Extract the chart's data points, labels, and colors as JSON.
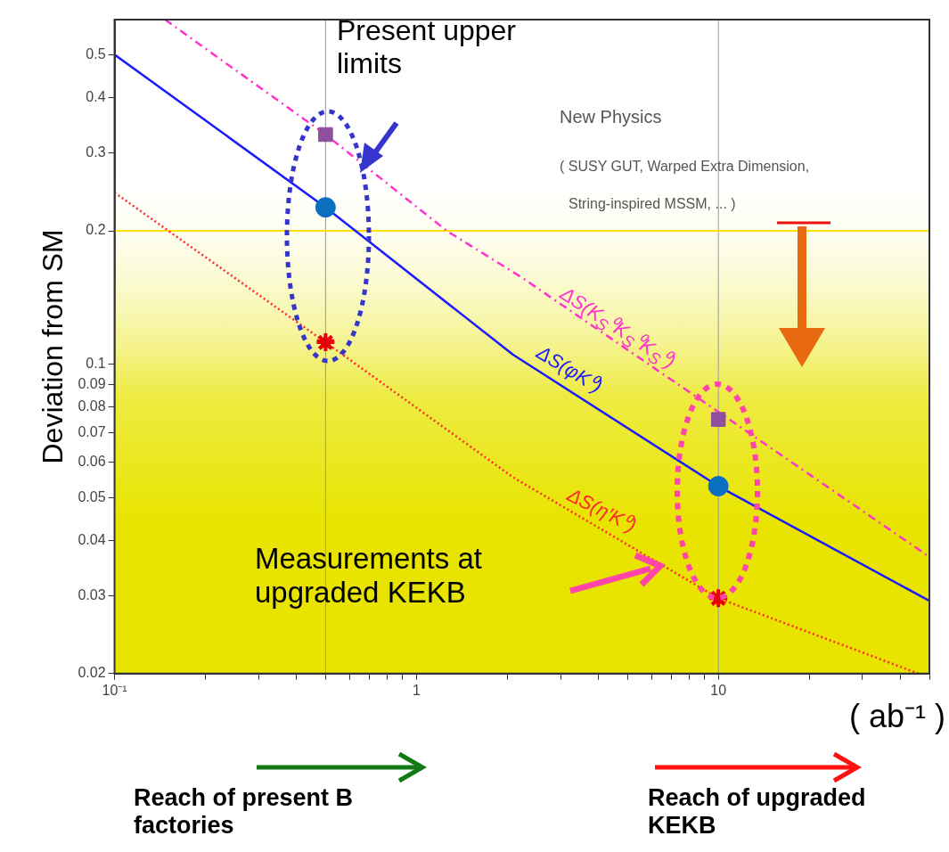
{
  "chart_data": {
    "type": "line",
    "ylabel": "Deviation from SM",
    "xlabel": "( ab⁻¹ )",
    "log": "xy",
    "grid": false,
    "legend": false,
    "xlim": [
      0.1,
      50
    ],
    "ylim": [
      0.02,
      0.6
    ],
    "xticks": [
      {
        "value": 0.1,
        "label": "10⁻¹"
      },
      {
        "value": 0.2,
        "label": null
      },
      {
        "value": 0.3,
        "label": null
      },
      {
        "value": 0.4,
        "label": null
      },
      {
        "value": 0.5,
        "label": null
      },
      {
        "value": 0.6,
        "label": null
      },
      {
        "value": 0.7,
        "label": null
      },
      {
        "value": 0.8,
        "label": null
      },
      {
        "value": 0.9,
        "label": null
      },
      1,
      {
        "value": 2,
        "label": null
      },
      {
        "value": 3,
        "label": null
      },
      {
        "value": 4,
        "label": null
      },
      {
        "value": 5,
        "label": null
      },
      {
        "value": 6,
        "label": null
      },
      {
        "value": 7,
        "label": null
      },
      {
        "value": 8,
        "label": null
      },
      {
        "value": 9,
        "label": null
      },
      10,
      {
        "value": 20,
        "label": null
      },
      {
        "value": 30,
        "label": null
      },
      {
        "value": 40,
        "label": null
      },
      {
        "value": 50,
        "label": null
      }
    ],
    "yticks": [
      0.02,
      0.03,
      0.04,
      0.05,
      0.06,
      0.07,
      0.08,
      0.09,
      0.1,
      0.2,
      0.3,
      0.4,
      0.5
    ],
    "series": [
      {
        "name": "ΔS(K$_{S}$⁰K$_{S}$⁰K$_{S}$⁰)",
        "color": "#ff33cc",
        "type": "line",
        "marker": "none",
        "line_style": "dashed",
        "x": [
          0.147,
          0.5,
          1.26,
          2.23,
          10,
          50
        ],
        "values": [
          0.6,
          0.33,
          0.2,
          0.157,
          0.078,
          0.0367
        ]
      },
      {
        "name": "ΔS(φK⁰)",
        "color": "#1a1aff",
        "type": "line",
        "marker": "none",
        "line_style": "solid",
        "x": [
          0.1,
          0.5,
          2.09,
          10,
          50
        ],
        "values": [
          0.5,
          0.226,
          0.105,
          0.053,
          0.0292
        ]
      },
      {
        "name": "ΔS(η′K⁰)",
        "color": "#ff2a2a",
        "type": "line",
        "marker": "none",
        "line_style": "dotted",
        "x": [
          0.1,
          0.5,
          2.09,
          10,
          46
        ],
        "values": [
          0.244,
          0.112,
          0.0555,
          0.0296,
          0.02
        ]
      },
      {
        "color": "#8e4f9e",
        "type": "scatter",
        "marker": "square",
        "x": [
          0.5,
          10
        ],
        "values": [
          0.33,
          0.075
        ]
      },
      {
        "color": "#0a6fbf",
        "type": "scatter",
        "marker": "circle",
        "x": [
          0.5,
          10
        ],
        "values": [
          0.226,
          0.053
        ]
      },
      {
        "color": "#e8000b",
        "type": "scatter",
        "marker": "star",
        "x": [
          0.5,
          10
        ],
        "values": [
          0.112,
          0.0296
        ]
      }
    ],
    "ref_lines": [
      {
        "axis": "x",
        "value": 0.5,
        "color": "#999999"
      },
      {
        "axis": "x",
        "value": 10,
        "color": "#999999"
      },
      {
        "axis": "y",
        "value": 0.2,
        "color": "#ffe000"
      }
    ],
    "bands": [
      {
        "axis": "y",
        "from": 0.02,
        "to": 0.28,
        "color": "#e8e400"
      }
    ],
    "annotations": [
      "Present upper limits",
      "New Physics",
      "( SUSY GUT, Warped Extra Dimension,",
      "String-inspired MSSM, ... )",
      "Measurements at upgraded KEKB",
      "Reach of present B factories",
      "Reach of upgraded KEKB"
    ]
  }
}
